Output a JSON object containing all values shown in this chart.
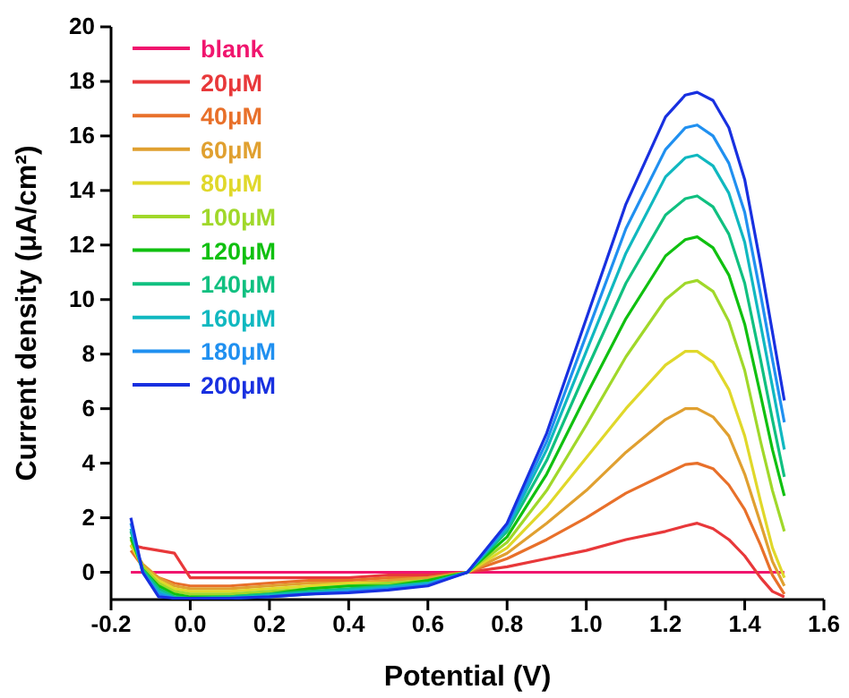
{
  "chart_data": {
    "type": "line",
    "xlabel": "Potential (V)",
    "ylabel": "Current density (μA/cm²)",
    "x": [
      -0.15,
      -0.12,
      -0.08,
      -0.04,
      0,
      0.1,
      0.2,
      0.3,
      0.4,
      0.5,
      0.6,
      0.7,
      0.8,
      0.9,
      1.0,
      1.1,
      1.2,
      1.25,
      1.28,
      1.32,
      1.36,
      1.4,
      1.44,
      1.47,
      1.5
    ],
    "series": [
      {
        "name": "blank",
        "color": "#f0156e",
        "values": [
          0,
          0,
          0,
          0,
          0,
          0,
          0,
          0,
          0,
          0,
          0,
          0,
          0,
          0,
          0,
          0,
          0,
          0,
          0,
          0,
          0,
          0,
          0,
          0,
          0
        ]
      },
      {
        "name": "20μM",
        "color": "#e8383a",
        "values": [
          1.0,
          0.9,
          0.8,
          0.7,
          -0.2,
          -0.2,
          -0.2,
          -0.2,
          -0.2,
          -0.1,
          -0.1,
          0,
          0.2,
          0.5,
          0.8,
          1.2,
          1.5,
          1.7,
          1.8,
          1.6,
          1.2,
          0.6,
          -0.2,
          -0.7,
          -0.9
        ]
      },
      {
        "name": "40μM",
        "color": "#e8702a",
        "values": [
          0.8,
          0.2,
          -0.2,
          -0.4,
          -0.5,
          -0.5,
          -0.4,
          -0.3,
          -0.3,
          -0.2,
          -0.2,
          0,
          0.5,
          1.2,
          2.0,
          2.9,
          3.6,
          3.95,
          4.0,
          3.8,
          3.2,
          2.3,
          1.0,
          -0.1,
          -0.8
        ]
      },
      {
        "name": "60μM",
        "color": "#e0a030",
        "values": [
          1.0,
          0.3,
          -0.2,
          -0.5,
          -0.6,
          -0.6,
          -0.5,
          -0.4,
          -0.4,
          -0.3,
          -0.2,
          0,
          0.7,
          1.8,
          3.0,
          4.4,
          5.6,
          6.0,
          6.0,
          5.7,
          5.0,
          3.6,
          1.8,
          0.4,
          -0.5
        ]
      },
      {
        "name": "80μM",
        "color": "#e0d82a",
        "values": [
          1.0,
          0.2,
          -0.3,
          -0.6,
          -0.7,
          -0.7,
          -0.6,
          -0.5,
          -0.4,
          -0.4,
          -0.3,
          0,
          0.9,
          2.4,
          4.2,
          6.0,
          7.6,
          8.1,
          8.1,
          7.7,
          6.7,
          5.0,
          2.6,
          0.9,
          -0.2
        ]
      },
      {
        "name": "100μM",
        "color": "#a0d82a",
        "values": [
          1.2,
          0.2,
          -0.4,
          -0.7,
          -0.8,
          -0.8,
          -0.7,
          -0.6,
          -0.5,
          -0.4,
          -0.3,
          0,
          1.1,
          3.0,
          5.4,
          7.9,
          10.0,
          10.6,
          10.7,
          10.3,
          9.2,
          7.4,
          4.8,
          3.0,
          1.5
        ]
      },
      {
        "name": "120μM",
        "color": "#10c010",
        "values": [
          1.3,
          0.1,
          -0.5,
          -0.8,
          -0.9,
          -0.9,
          -0.8,
          -0.6,
          -0.5,
          -0.5,
          -0.3,
          0,
          1.3,
          3.6,
          6.5,
          9.3,
          11.6,
          12.2,
          12.3,
          11.9,
          10.9,
          9.1,
          6.5,
          4.5,
          2.8
        ]
      },
      {
        "name": "140μM",
        "color": "#10c080",
        "values": [
          1.5,
          0.1,
          -0.6,
          -0.9,
          -0.95,
          -0.9,
          -0.8,
          -0.7,
          -0.6,
          -0.5,
          -0.4,
          0,
          1.5,
          4.1,
          7.4,
          10.6,
          13.1,
          13.7,
          13.8,
          13.4,
          12.4,
          10.6,
          7.8,
          5.6,
          3.5
        ]
      },
      {
        "name": "160μM",
        "color": "#10b8c0",
        "values": [
          1.6,
          0,
          -0.7,
          -0.95,
          -0.95,
          -0.95,
          -0.85,
          -0.75,
          -0.65,
          -0.55,
          -0.4,
          0,
          1.6,
          4.5,
          8.1,
          11.7,
          14.5,
          15.2,
          15.3,
          14.9,
          13.9,
          12.1,
          9.1,
          6.8,
          4.5
        ]
      },
      {
        "name": "180μM",
        "color": "#2090f0",
        "values": [
          1.8,
          0,
          -0.8,
          -0.95,
          -0.95,
          -0.95,
          -0.9,
          -0.8,
          -0.7,
          -0.6,
          -0.45,
          0,
          1.7,
          4.8,
          8.7,
          12.6,
          15.5,
          16.3,
          16.4,
          16.0,
          15.0,
          13.2,
          10.2,
          7.8,
          5.5
        ]
      },
      {
        "name": "200μM",
        "color": "#1830e0",
        "values": [
          2.0,
          0,
          -0.9,
          -0.95,
          -0.95,
          -0.95,
          -0.9,
          -0.8,
          -0.75,
          -0.65,
          -0.5,
          0,
          1.8,
          5.1,
          9.3,
          13.5,
          16.7,
          17.5,
          17.6,
          17.3,
          16.3,
          14.4,
          11.3,
          8.8,
          6.3
        ]
      }
    ],
    "xlim": [
      -0.2,
      1.6
    ],
    "xticks": [
      {
        "value": -0.2,
        "label": "-0.2"
      },
      {
        "value": 0,
        "label": "0.0"
      },
      {
        "value": 0.2,
        "label": "0.2"
      },
      {
        "value": 0.4,
        "label": "0.4"
      },
      {
        "value": 0.6,
        "label": "0.6"
      },
      {
        "value": 0.8,
        "label": "0.8"
      },
      {
        "value": 1.0,
        "label": "1.0"
      },
      {
        "value": 1.2,
        "label": "1.2"
      },
      {
        "value": 1.4,
        "label": "1.4"
      },
      {
        "value": 1.6,
        "label": "1.6"
      }
    ],
    "ylim": [
      -1,
      20
    ],
    "yticks": [
      0,
      2,
      4,
      6,
      8,
      10,
      12,
      14,
      16,
      18,
      20
    ],
    "legend": "top left",
    "grid": false,
    "marker": "none",
    "line_style": "solid"
  }
}
